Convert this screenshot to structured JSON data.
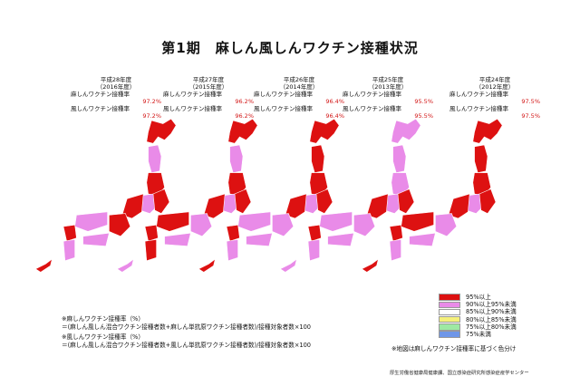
{
  "title": "第1期　麻しん風しんワクチン接種状況",
  "years": [
    {
      "era": "平成28年度",
      "western": "（2016年度）",
      "measles_label": "麻しんワクチン接種率",
      "measles_rate": "97.2%",
      "rubella_label": "風しんワクチン接種率",
      "rubella_rate": "97.2%"
    },
    {
      "era": "平成27年度",
      "western": "（2015年度）",
      "measles_label": "麻しんワクチン接種率",
      "measles_rate": "96.2%",
      "rubella_label": "風しんワクチン接種率",
      "rubella_rate": "96.2%"
    },
    {
      "era": "平成26年度",
      "western": "（2014年度）",
      "measles_label": "麻しんワクチン接種率",
      "measles_rate": "96.4%",
      "rubella_label": "風しんワクチン接種率",
      "rubella_rate": "96.4%"
    },
    {
      "era": "平成25年度",
      "western": "（2013年度）",
      "measles_label": "麻しんワクチン接種率",
      "measles_rate": "95.5%",
      "rubella_label": "風しんワクチン接種率",
      "rubella_rate": "95.5%"
    },
    {
      "era": "平成24年度",
      "western": "（2012年度）",
      "measles_label": "麻しんワクチン接種率",
      "measles_rate": "97.5%",
      "rubella_label": "風しんワクチン接種率",
      "rubella_rate": "97.5%"
    }
  ],
  "legend": [
    {
      "label": "95%以上",
      "color": "#dd1111"
    },
    {
      "label": "90%以上95%未満",
      "color": "#e98be8"
    },
    {
      "label": "85%以上90%未満",
      "color": "#ffffff"
    },
    {
      "label": "80%以上85%未満",
      "color": "#f5f07a"
    },
    {
      "label": "75%以上80%未満",
      "color": "#9ee9a3"
    },
    {
      "label": "75%未満",
      "color": "#6f96e8"
    }
  ],
  "formulas": {
    "measles_title": "※麻しんワクチン接種率（%）",
    "measles_formula": "＝(麻しん風しん混合ワクチン接種者数+麻しん単抗原ワクチン接種者数)/接種対象者数×100",
    "rubella_title": "※風しんワクチン接種率（%）",
    "rubella_formula": "＝(麻しん風しん混合ワクチン接種者数+風しん単抗原ワクチン接種者数)/接種対象者数×100"
  },
  "note": "※地図は麻しんワクチン接種率に基づく色分け",
  "source": "厚生労働省健康局健康課、国立感染症研究所感染症疫学センター",
  "colors": {
    "red": "#dd1111",
    "pink": "#e98be8",
    "border": "#ffffff"
  },
  "maps": [
    {
      "hokkaido": "red",
      "pink_regions": [
        "tohoku-north",
        "kanto-west",
        "chugoku",
        "shikoku",
        "kyushu-south"
      ]
    },
    {
      "hokkaido": "red",
      "pink_regions": [
        "tohoku-north",
        "kanto-west",
        "kinki",
        "shikoku",
        "okinawa"
      ]
    },
    {
      "hokkaido": "red",
      "pink_regions": [
        "kanto-west",
        "kinki",
        "chugoku",
        "shikoku",
        "kyushu-south"
      ]
    },
    {
      "hokkaido": "pink",
      "pink_regions": [
        "tohoku-north",
        "tohoku-south",
        "kanto-west",
        "kinki",
        "chugoku",
        "shikoku",
        "kyushu-south",
        "okinawa"
      ]
    },
    {
      "hokkaido": "red",
      "pink_regions": [
        "kanto-west",
        "kinki",
        "shikoku",
        "kyushu-south"
      ]
    }
  ]
}
